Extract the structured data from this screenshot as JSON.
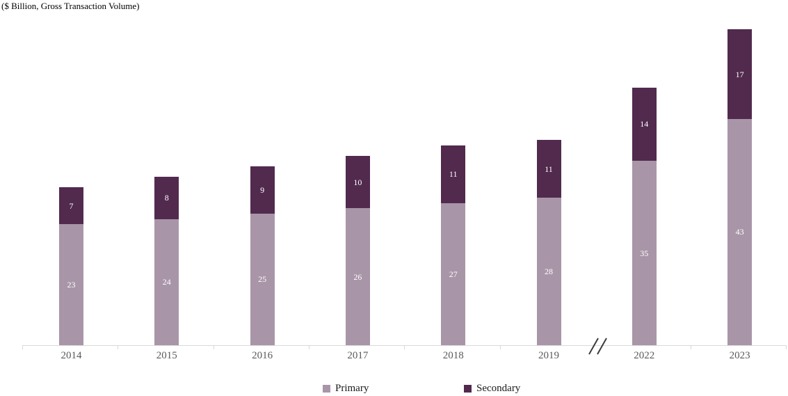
{
  "chart_data": {
    "type": "bar",
    "stacked": true,
    "title": "($ Billion, Gross Transaction Volume)",
    "categories": [
      "2014",
      "2015",
      "2016",
      "2017",
      "2018",
      "2019",
      "2022",
      "2023"
    ],
    "series": [
      {
        "name": "Primary",
        "color": "#a995a8",
        "values": [
          23,
          24,
          25,
          26,
          27,
          28,
          35,
          43
        ]
      },
      {
        "name": "Secondary",
        "color": "#512a4e",
        "values": [
          7,
          8,
          9,
          10,
          11,
          11,
          14,
          17
        ]
      }
    ],
    "xlabel": "",
    "ylabel": "",
    "ylim": [
      0,
      63
    ],
    "grid": false,
    "y_axis_visible": false,
    "legend_position": "bottom",
    "value_labels": "inside-center",
    "x_axis_break": {
      "between": [
        "2019",
        "2022"
      ],
      "symbol": "//"
    },
    "colors": {
      "axis_line": "#d9d9d9",
      "tick_label": "#595959",
      "value_label": "#ffffff",
      "break_mark": "#3c3c3c",
      "title_text": "#000000"
    }
  }
}
